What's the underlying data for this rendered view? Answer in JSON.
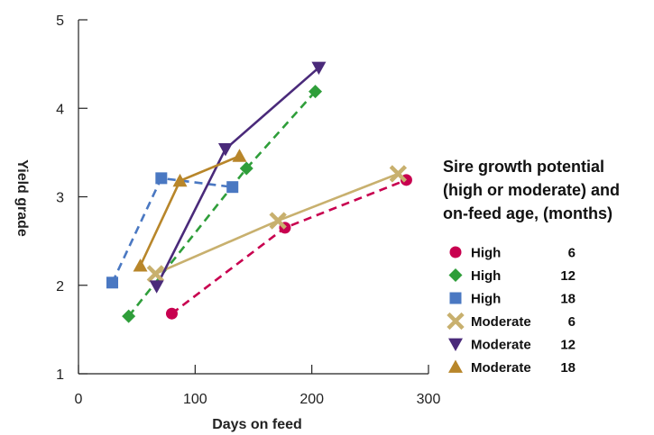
{
  "chart_data": {
    "type": "scatter",
    "xlabel": "Days on feed",
    "ylabel": "Yield grade",
    "xlim": [
      0,
      300
    ],
    "ylim": [
      1,
      5
    ],
    "x_ticks": [
      0,
      100,
      200,
      300
    ],
    "y_ticks": [
      1,
      2,
      3,
      4,
      5
    ],
    "grid": false,
    "legend_position": "right",
    "legend_title": "Sire growth potential (high or moderate) and on-feed age, (months)",
    "legend_title_lines": [
      "Sire growth potential",
      "(high or moderate) and",
      "on-feed age, (months)"
    ],
    "series": [
      {
        "potential": "High",
        "age": "6",
        "marker": "circle",
        "line": "dashed",
        "color": "#c8004f",
        "x": [
          80,
          177,
          281
        ],
        "y": [
          1.68,
          2.65,
          3.19
        ]
      },
      {
        "potential": "High",
        "age": "12",
        "marker": "diamond",
        "line": "dashed",
        "color": "#2f9e3a",
        "x": [
          43,
          144,
          203
        ],
        "y": [
          1.65,
          3.32,
          4.19
        ]
      },
      {
        "potential": "High",
        "age": "18",
        "marker": "square",
        "line": "dashed",
        "color": "#4a78c2",
        "x": [
          29,
          71,
          132
        ],
        "y": [
          2.03,
          3.21,
          3.11
        ]
      },
      {
        "potential": "Moderate",
        "age": "6",
        "marker": "x",
        "line": "solid",
        "color": "#c8b06e",
        "x": [
          66,
          171,
          274
        ],
        "y": [
          2.13,
          2.73,
          3.26
        ]
      },
      {
        "potential": "Moderate",
        "age": "12",
        "marker": "triangle-down",
        "line": "solid",
        "color": "#4a2a7a",
        "x": [
          67,
          126,
          206
        ],
        "y": [
          1.99,
          3.54,
          4.46
        ]
      },
      {
        "potential": "Moderate",
        "age": "18",
        "marker": "triangle-up",
        "line": "solid",
        "color": "#b8862a",
        "x": [
          53,
          87,
          138
        ],
        "y": [
          2.22,
          3.18,
          3.46
        ]
      }
    ]
  }
}
